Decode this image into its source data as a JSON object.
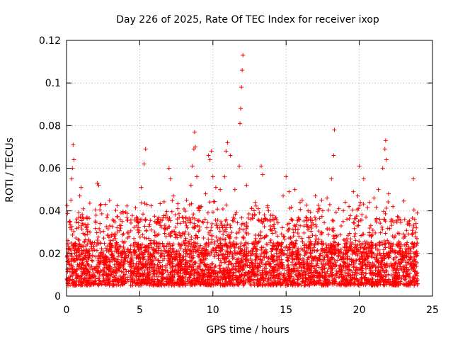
{
  "chart_data": {
    "type": "scatter",
    "title": "Day 226 of 2025, Rate Of TEC Index for receiver ixop",
    "xlabel": "GPS time / hours",
    "ylabel": "ROTI / TECUs",
    "xlim": [
      0,
      25
    ],
    "ylim": [
      0,
      0.12
    ],
    "xticks": [
      0,
      5,
      10,
      15,
      20,
      25
    ],
    "xtick_labels": [
      "0",
      "5",
      "10",
      "15",
      "20",
      "25"
    ],
    "yticks": [
      0,
      0.02,
      0.04,
      0.06,
      0.08,
      0.1,
      0.12
    ],
    "ytick_labels": [
      "0",
      "0.02",
      "0.04",
      "0.06",
      "0.08",
      "0.1",
      "0.12"
    ],
    "grid": true,
    "marker": "+",
    "color": "#ff0000",
    "x_data_range": [
      0,
      24
    ],
    "typical_band": [
      0.005,
      0.025
    ],
    "series": [
      {
        "name": "ROTI",
        "x": [
          0.05,
          0.1,
          0.2,
          0.3,
          0.35,
          0.4,
          0.45,
          0.5,
          0.9,
          1.0,
          1.1,
          1.6,
          2.1,
          2.2,
          2.3,
          2.8,
          3.0,
          3.4,
          3.8,
          4.2,
          4.6,
          5.1,
          5.3,
          5.4,
          5.5,
          5.8,
          6.3,
          6.8,
          7.0,
          7.1,
          7.3,
          7.6,
          7.9,
          8.2,
          8.5,
          8.6,
          8.7,
          8.75,
          8.8,
          8.9,
          9.2,
          9.5,
          9.7,
          9.8,
          9.9,
          10.0,
          10.2,
          10.5,
          10.8,
          10.9,
          11.0,
          11.2,
          11.5,
          11.8,
          11.85,
          11.9,
          11.95,
          12.0,
          12.05,
          12.3,
          12.7,
          13.1,
          13.3,
          13.4,
          13.8,
          14.3,
          14.8,
          15.0,
          15.2,
          15.6,
          16.1,
          16.5,
          17.0,
          17.3,
          17.5,
          17.8,
          18.1,
          18.25,
          18.3,
          18.6,
          18.9,
          19.3,
          19.6,
          19.9,
          20.0,
          20.3,
          20.7,
          21.0,
          21.3,
          21.6,
          21.75,
          21.8,
          21.85,
          22.0,
          22.3,
          22.7,
          23.1,
          23.4,
          23.6,
          23.7,
          23.9
        ],
        "y": [
          0.019,
          0.026,
          0.035,
          0.045,
          0.055,
          0.06,
          0.071,
          0.064,
          0.047,
          0.051,
          0.034,
          0.03,
          0.053,
          0.052,
          0.03,
          0.038,
          0.026,
          0.025,
          0.035,
          0.03,
          0.027,
          0.051,
          0.062,
          0.069,
          0.043,
          0.031,
          0.029,
          0.038,
          0.06,
          0.055,
          0.047,
          0.041,
          0.037,
          0.045,
          0.052,
          0.061,
          0.069,
          0.077,
          0.07,
          0.056,
          0.042,
          0.048,
          0.066,
          0.064,
          0.068,
          0.056,
          0.051,
          0.05,
          0.056,
          0.068,
          0.072,
          0.066,
          0.05,
          0.061,
          0.081,
          0.088,
          0.098,
          0.106,
          0.113,
          0.052,
          0.038,
          0.041,
          0.061,
          0.057,
          0.04,
          0.03,
          0.047,
          0.056,
          0.049,
          0.05,
          0.045,
          0.04,
          0.047,
          0.041,
          0.04,
          0.046,
          0.055,
          0.066,
          0.078,
          0.041,
          0.035,
          0.042,
          0.049,
          0.047,
          0.061,
          0.055,
          0.044,
          0.046,
          0.05,
          0.06,
          0.069,
          0.073,
          0.064,
          0.048,
          0.042,
          0.037,
          0.036,
          0.034,
          0.029,
          0.055,
          0.032
        ]
      }
    ]
  }
}
